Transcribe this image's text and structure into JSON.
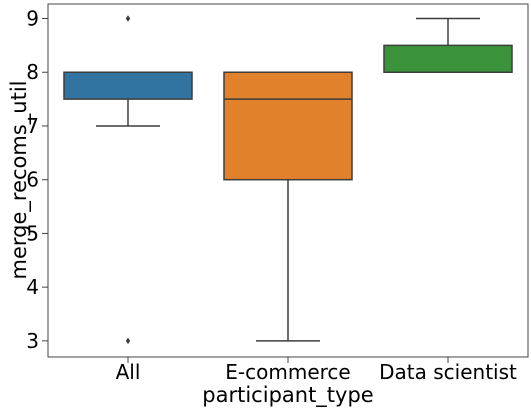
{
  "chart_data": {
    "type": "box",
    "xlabel": "participant_type",
    "ylabel": "merge_recoms_util",
    "ylim": [
      2.7,
      9.27
    ],
    "yticks": [
      3,
      4,
      5,
      6,
      7,
      8,
      9
    ],
    "grid": false,
    "categories": [
      "All",
      "E-commerce",
      "Data scientist"
    ],
    "boxes": [
      {
        "category": "All",
        "color": "#3274a1",
        "whisker_low": 7,
        "q1": 7.5,
        "median": 8,
        "q3": 8,
        "whisker_high": 8,
        "outliers": [
          9,
          3
        ]
      },
      {
        "category": "E-commerce",
        "color": "#e1812c",
        "whisker_low": 3,
        "q1": 6,
        "median": 7.5,
        "q3": 8,
        "whisker_high": 8,
        "outliers": []
      },
      {
        "category": "Data scientist",
        "color": "#3a923a",
        "whisker_low": 8,
        "q1": 8,
        "median": 8,
        "q3": 8.5,
        "whisker_high": 9,
        "outliers": []
      }
    ]
  }
}
